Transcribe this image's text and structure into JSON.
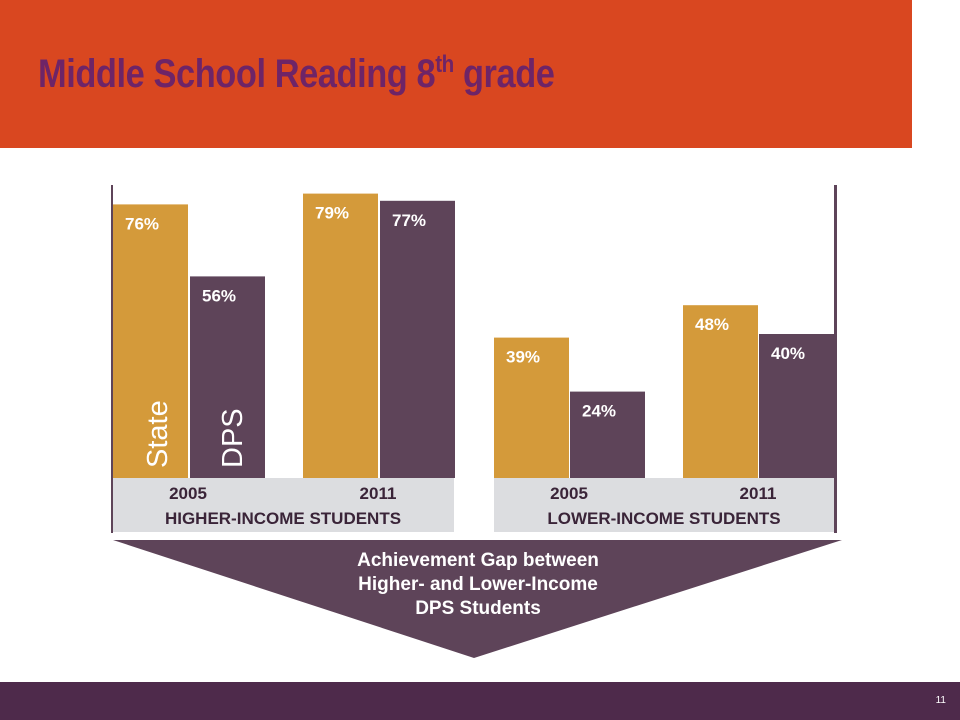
{
  "slide": {
    "title_main": "Middle School Reading 8",
    "title_sup": "th",
    "title_end": " grade",
    "page_number": "11"
  },
  "colors": {
    "state": "#D49A3A",
    "dps": "#5E4459",
    "header_band": "#D94720",
    "footer_band": "#4E2A4B",
    "title_text": "#6E2467",
    "label_band": "#DCDDE0",
    "arrow": "#5E4459"
  },
  "chart_data": {
    "type": "bar",
    "groups": [
      {
        "label": "HIGHER-INCOME STUDENTS",
        "categories": [
          "2005",
          "2011"
        ],
        "series": [
          {
            "name": "State",
            "values": [
              76,
              79
            ]
          },
          {
            "name": "DPS",
            "values": [
              56,
              77
            ]
          }
        ],
        "value_labels": [
          [
            "76%",
            "79%"
          ],
          [
            "56%",
            "77%"
          ]
        ]
      },
      {
        "label": "LOWER-INCOME STUDENTS",
        "categories": [
          "2005",
          "2011"
        ],
        "series": [
          {
            "name": "State",
            "values": [
              39,
              48
            ]
          },
          {
            "name": "DPS",
            "values": [
              24,
              40
            ]
          }
        ],
        "value_labels": [
          [
            "39%",
            "48%"
          ],
          [
            "24%",
            "40%"
          ]
        ]
      }
    ],
    "ylim": [
      0,
      80
    ],
    "grid": false,
    "legend": "inside-first-bars",
    "annotation": [
      "Achievement Gap between",
      "Higher- and Lower-Income",
      "DPS Students"
    ]
  }
}
